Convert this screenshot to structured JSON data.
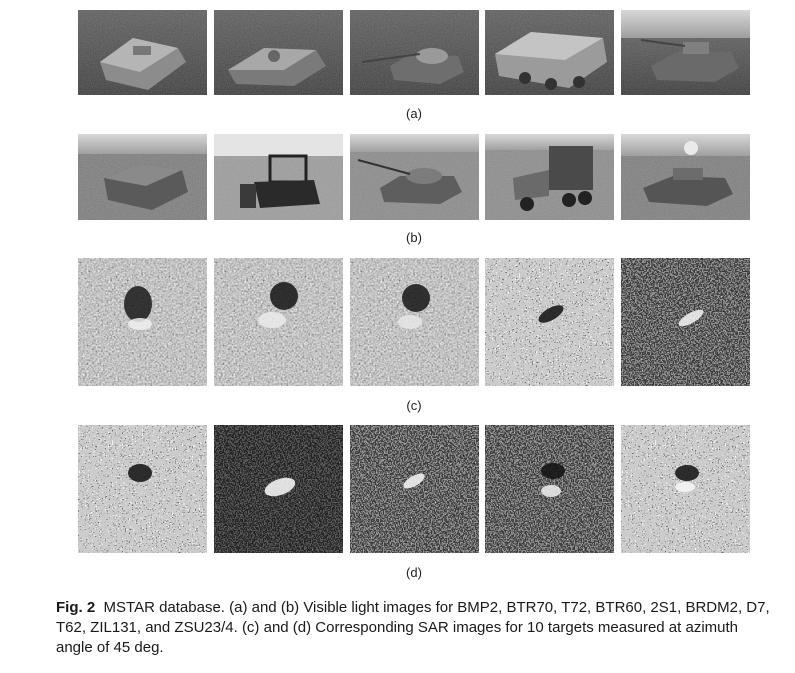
{
  "figure": {
    "subfigure_labels": [
      "(a)",
      "(b)",
      "(c)",
      "(d)"
    ],
    "caption_label": "Fig. 2",
    "caption_text": "MSTAR database. (a) and (b) Visible light images for BMP2, BTR70, T72, BTR60, 2S1, BRDM2, D7, T62, ZIL131, and ZSU23/4. (c) and (d) Corresponding SAR images for 10 targets measured at azimuth angle of 45 deg."
  }
}
